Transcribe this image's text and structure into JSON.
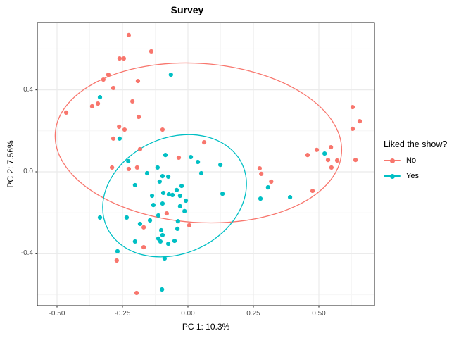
{
  "title": "Survey",
  "legend": {
    "title": "Liked the show?",
    "items": [
      {
        "label": "No",
        "color": "#F8766D"
      },
      {
        "label": "Yes",
        "color": "#00BFC4"
      }
    ]
  },
  "colors": {
    "no_series": "#F8766D",
    "yes_series": "#00BFC4",
    "panel_background": "#ffffff",
    "panel_border": "#333333",
    "grid_major": "#ebebeb",
    "grid_minor": "#f6f6f6",
    "tick_mark": "#333333",
    "tick_label": "#4d4d4d"
  },
  "chart_data": {
    "type": "scatter",
    "title": "Survey",
    "xlabel": "PC 1: 10.3%",
    "ylabel": "PC 2: 7.56%",
    "xlim": [
      -0.575,
      0.712
    ],
    "ylim": [
      -0.653,
      0.729
    ],
    "grid": true,
    "legend_position": "right",
    "x_major_ticks": [
      -0.5,
      -0.25,
      0.0,
      0.25,
      0.5
    ],
    "x_major_tick_labels": [
      "-0.50",
      "-0.25",
      "0.00",
      "0.25",
      "0.50"
    ],
    "x_minor_gridlines": [
      -0.375,
      -0.125,
      0.125,
      0.375,
      0.625
    ],
    "y_major_ticks": [
      0.4,
      0.0,
      -0.4
    ],
    "y_major_tick_labels": [
      "0.4",
      "0.0",
      "-0.4"
    ],
    "y_minor_gridlines": [
      0.6,
      0.2,
      -0.2,
      -0.6
    ],
    "point_radius_px": 3.1,
    "series": [
      {
        "name": "No",
        "color": "#F8766D",
        "points": [
          [
            -0.226,
            0.667
          ],
          [
            -0.14,
            0.588
          ],
          [
            -0.261,
            0.553
          ],
          [
            -0.245,
            0.553
          ],
          [
            -0.304,
            0.474
          ],
          [
            -0.323,
            0.45
          ],
          [
            -0.191,
            0.443
          ],
          [
            -0.285,
            0.409
          ],
          [
            -0.212,
            0.344
          ],
          [
            -0.344,
            0.333
          ],
          [
            -0.366,
            0.32
          ],
          [
            -0.465,
            0.289
          ],
          [
            -0.188,
            0.268
          ],
          [
            -0.263,
            0.22
          ],
          [
            -0.242,
            0.206
          ],
          [
            -0.097,
            0.206
          ],
          [
            -0.285,
            0.162
          ],
          [
            -0.183,
            0.11
          ],
          [
            -0.035,
            0.069
          ],
          [
            0.062,
            0.144
          ],
          [
            -0.194,
            0.021
          ],
          [
            -0.226,
            0.014
          ],
          [
            -0.29,
            0.021
          ],
          [
            -0.081,
            -0.203
          ],
          [
            -0.169,
            -0.271
          ],
          [
            0.005,
            -0.261
          ],
          [
            -0.169,
            -0.368
          ],
          [
            -0.272,
            -0.433
          ],
          [
            -0.196,
            -0.591
          ],
          [
            0.274,
            0.017
          ],
          [
            0.28,
            -0.01
          ],
          [
            0.318,
            -0.048
          ],
          [
            0.476,
            -0.093
          ],
          [
            0.548,
            0.021
          ],
          [
            0.629,
            0.316
          ],
          [
            0.656,
            0.247
          ],
          [
            0.629,
            0.21
          ],
          [
            0.546,
            0.12
          ],
          [
            0.492,
            0.107
          ],
          [
            0.457,
            0.082
          ],
          [
            0.535,
            0.058
          ],
          [
            0.57,
            0.055
          ],
          [
            0.64,
            0.058
          ]
        ]
      },
      {
        "name": "Yes",
        "color": "#00BFC4",
        "points": [
          [
            -0.065,
            0.474
          ],
          [
            -0.336,
            0.364
          ],
          [
            -0.261,
            0.162
          ],
          [
            -0.086,
            0.082
          ],
          [
            0.011,
            0.072
          ],
          [
            0.038,
            0.048
          ],
          [
            -0.228,
            0.052
          ],
          [
            -0.116,
            0.021
          ],
          [
            -0.156,
            -0.007
          ],
          [
            0.051,
            -0.007
          ],
          [
            0.124,
            0.034
          ],
          [
            -0.097,
            -0.021
          ],
          [
            -0.075,
            -0.024
          ],
          [
            -0.108,
            -0.048
          ],
          [
            -0.024,
            -0.069
          ],
          [
            -0.043,
            -0.089
          ],
          [
            -0.094,
            -0.103
          ],
          [
            -0.073,
            -0.11
          ],
          [
            -0.059,
            -0.113
          ],
          [
            -0.03,
            -0.117
          ],
          [
            -0.137,
            -0.117
          ],
          [
            -0.008,
            -0.141
          ],
          [
            -0.097,
            -0.155
          ],
          [
            -0.132,
            -0.162
          ],
          [
            -0.03,
            -0.168
          ],
          [
            -0.202,
            -0.065
          ],
          [
            0.132,
            -0.107
          ],
          [
            0.306,
            -0.076
          ],
          [
            0.277,
            -0.131
          ],
          [
            0.39,
            -0.124
          ],
          [
            0.522,
            0.089
          ],
          [
            -0.013,
            -0.192
          ],
          [
            -0.336,
            -0.223
          ],
          [
            -0.234,
            -0.223
          ],
          [
            -0.183,
            -0.254
          ],
          [
            -0.145,
            -0.237
          ],
          [
            -0.113,
            -0.213
          ],
          [
            -0.038,
            -0.241
          ],
          [
            -0.04,
            -0.278
          ],
          [
            -0.102,
            -0.285
          ],
          [
            -0.097,
            -0.309
          ],
          [
            -0.113,
            -0.326
          ],
          [
            -0.105,
            -0.34
          ],
          [
            -0.075,
            -0.351
          ],
          [
            -0.051,
            -0.337
          ],
          [
            -0.202,
            -0.34
          ],
          [
            -0.269,
            -0.388
          ],
          [
            -0.089,
            -0.423
          ],
          [
            -0.099,
            -0.574
          ]
        ]
      }
    ],
    "ellipses": [
      {
        "series": "No",
        "color": "#F8766D",
        "cx": 0.04,
        "cy": 0.141,
        "rx": 0.548,
        "ry": 0.388,
        "screen_rotation_deg": 4
      },
      {
        "series": "Yes",
        "color": "#00BFC4",
        "cx": -0.051,
        "cy": -0.117,
        "rx": 0.285,
        "ry": 0.282,
        "screen_rotation_deg": -25
      }
    ]
  }
}
